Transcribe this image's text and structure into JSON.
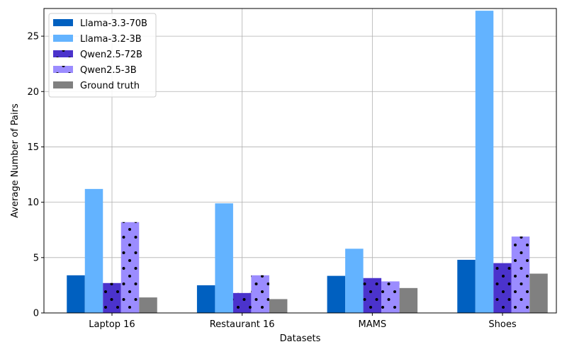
{
  "chart_data": {
    "type": "bar",
    "xlabel": "Datasets",
    "ylabel": "Average Number of Pairs",
    "categories": [
      "Laptop 16",
      "Restaurant 16",
      "MAMS",
      "Shoes"
    ],
    "ylim": [
      0,
      27.5
    ],
    "yticks": [
      0,
      5,
      10,
      15,
      20,
      25
    ],
    "grid": true,
    "legend_position": "top-left",
    "series": [
      {
        "name": "Llama-3.3-70B",
        "color": "#0060c0",
        "hatch": false,
        "values": [
          3.4,
          2.5,
          3.35,
          4.8
        ]
      },
      {
        "name": "Llama-3.2-3B",
        "color": "#63b3ff",
        "hatch": false,
        "values": [
          11.2,
          9.9,
          5.8,
          27.3
        ]
      },
      {
        "name": "Qwen2.5-72B",
        "color": "#4b33cc",
        "hatch": true,
        "values": [
          2.7,
          1.8,
          3.15,
          4.5
        ]
      },
      {
        "name": "Qwen2.5-3B",
        "color": "#9b8cff",
        "hatch": true,
        "values": [
          8.2,
          3.4,
          2.85,
          6.9
        ]
      },
      {
        "name": "Ground truth",
        "color": "#808080",
        "hatch": false,
        "values": [
          1.4,
          1.25,
          2.25,
          3.55
        ]
      }
    ]
  }
}
